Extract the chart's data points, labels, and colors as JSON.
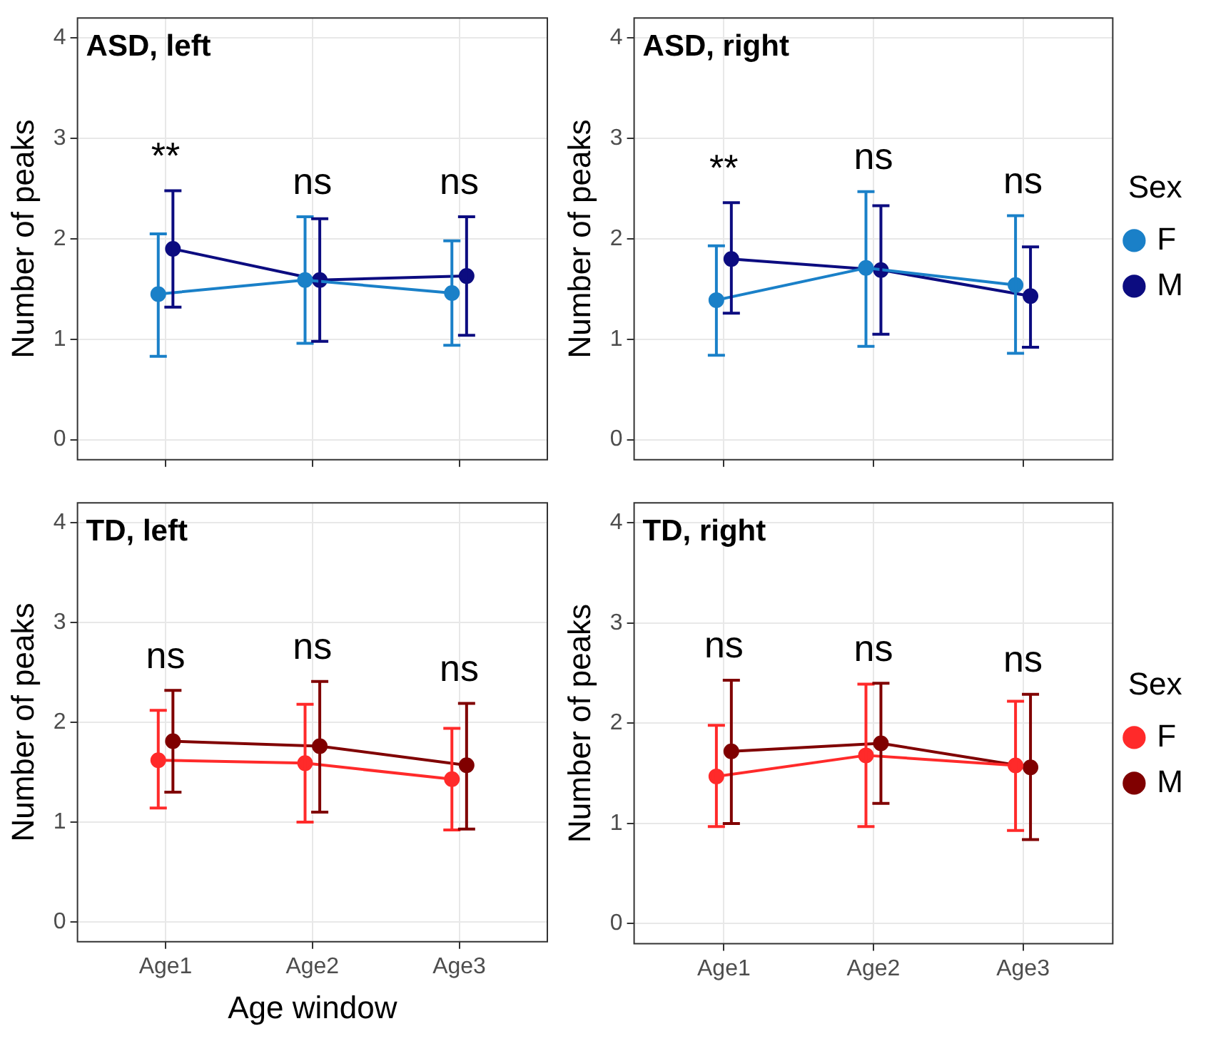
{
  "chart_data": [
    {
      "type": "line",
      "title": "ASD, left",
      "ylabel": "Number of peaks",
      "categories": [
        null,
        null,
        null
      ],
      "ylim": [
        -0.2,
        4.2
      ],
      "yticks": [
        0,
        1,
        2,
        3,
        4
      ],
      "tick_labels": "y",
      "grid": true,
      "marker": "circle",
      "legend": false,
      "series": [
        {
          "color": "#1a80c8",
          "values": [
            1.45,
            1.59,
            1.46
          ],
          "errors": [
            [
              0.83,
              2.05
            ],
            [
              0.96,
              2.22
            ],
            [
              0.94,
              1.98
            ]
          ]
        },
        {
          "color": "#0c0c80",
          "values": [
            1.9,
            1.59,
            1.63
          ],
          "errors": [
            [
              1.32,
              2.48
            ],
            [
              0.98,
              2.2
            ],
            [
              1.04,
              2.22
            ]
          ]
        }
      ],
      "annotations": [
        "**",
        "ns",
        "ns"
      ]
    },
    {
      "type": "line",
      "title": "ASD, right",
      "ylabel": "Number of peaks",
      "categories": [
        null,
        null,
        null
      ],
      "ylim": [
        -0.2,
        4.2
      ],
      "yticks": [
        0,
        1,
        2,
        3,
        4
      ],
      "tick_labels": "y",
      "grid": true,
      "marker": "circle",
      "legend": "right",
      "legend_title": "Sex",
      "series": [
        {
          "name": "F",
          "color": "#1a80c8",
          "values": [
            1.39,
            1.71,
            1.54
          ],
          "errors": [
            [
              0.84,
              1.93
            ],
            [
              0.93,
              2.47
            ],
            [
              0.86,
              2.23
            ]
          ]
        },
        {
          "name": "M",
          "color": "#0c0c80",
          "values": [
            1.8,
            1.69,
            1.43
          ],
          "errors": [
            [
              1.26,
              2.36
            ],
            [
              1.05,
              2.33
            ],
            [
              0.92,
              1.92
            ]
          ]
        }
      ],
      "annotations": [
        "**",
        "ns",
        "ns"
      ]
    },
    {
      "type": "line",
      "title": "TD, left",
      "ylabel": "Number of peaks",
      "xlabel": "Age window",
      "categories": [
        "Age1",
        "Age2",
        "Age3"
      ],
      "ylim": [
        -0.2,
        4.2
      ],
      "yticks": [
        0,
        1,
        2,
        3,
        4
      ],
      "grid": true,
      "marker": "circle",
      "legend": false,
      "series": [
        {
          "color": "#ff2a2a",
          "values": [
            1.62,
            1.59,
            1.43
          ],
          "errors": [
            [
              1.14,
              2.12
            ],
            [
              1.0,
              2.18
            ],
            [
              0.92,
              1.94
            ]
          ]
        },
        {
          "color": "#800000",
          "values": [
            1.81,
            1.76,
            1.57
          ],
          "errors": [
            [
              1.3,
              2.32
            ],
            [
              1.1,
              2.41
            ],
            [
              0.93,
              2.19
            ]
          ]
        }
      ],
      "annotations": [
        "ns",
        "ns",
        "ns"
      ]
    },
    {
      "type": "line",
      "title": "TD, right",
      "ylabel": "Number of peaks",
      "categories": [
        "Age1",
        "Age2",
        "Age3"
      ],
      "ylim": [
        -0.2,
        4.2
      ],
      "yticks": [
        0,
        1,
        2,
        3,
        4
      ],
      "grid": true,
      "marker": "circle",
      "legend": "right",
      "legend_title": "Sex",
      "series": [
        {
          "name": "F",
          "color": "#ff2a2a",
          "values": [
            1.47,
            1.68,
            1.58
          ],
          "errors": [
            [
              0.97,
              1.98
            ],
            [
              0.97,
              2.39
            ],
            [
              0.93,
              2.22
            ]
          ]
        },
        {
          "name": "M",
          "color": "#800000",
          "values": [
            1.72,
            1.8,
            1.56
          ],
          "errors": [
            [
              1.0,
              2.43
            ],
            [
              1.2,
              2.4
            ],
            [
              0.84,
              2.29
            ]
          ]
        }
      ],
      "annotations": [
        "ns",
        "ns",
        "ns"
      ]
    }
  ]
}
